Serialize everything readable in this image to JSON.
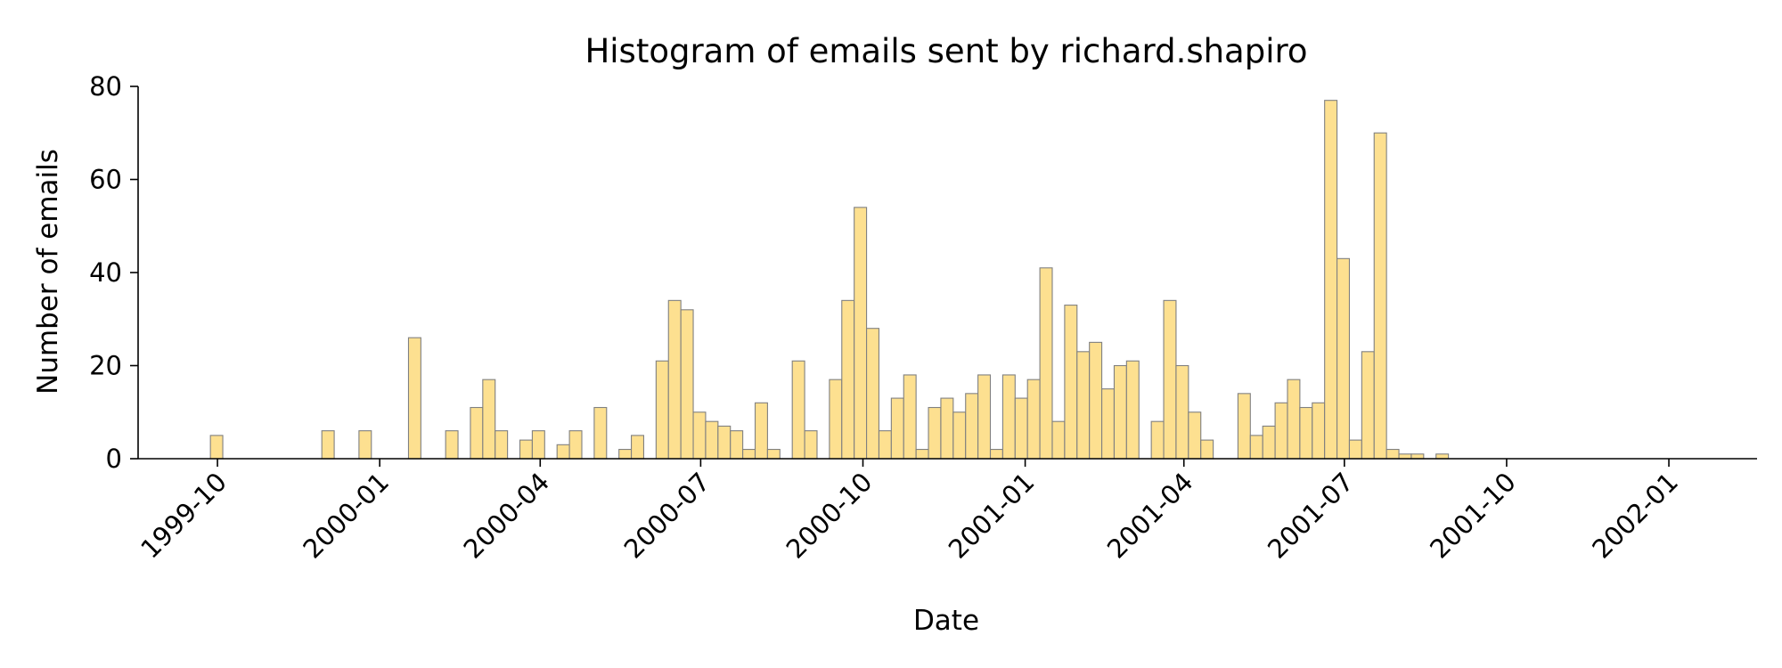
{
  "chart_data": {
    "type": "bar",
    "title": "Histogram of emails sent by richard.shapiro",
    "xlabel": "Date",
    "ylabel": "Number of emails",
    "bar_color": "#fde090",
    "edge_color": "#808080",
    "ylim": [
      0,
      80
    ],
    "yticks": [
      0,
      20,
      40,
      60,
      80
    ],
    "xlim": [
      "1999-08-17",
      "2002-02-20"
    ],
    "xticks": [
      "1999-10",
      "2000-01",
      "2000-04",
      "2000-07",
      "2000-10",
      "2001-01",
      "2001-04",
      "2001-07",
      "2001-10",
      "2002-01"
    ],
    "bin_start": "1999-09-27",
    "bin_width_days": 7.02,
    "values": [
      5,
      0,
      0,
      0,
      0,
      0,
      0,
      0,
      0,
      6,
      0,
      0,
      6,
      0,
      0,
      0,
      26,
      0,
      0,
      6,
      0,
      11,
      17,
      6,
      0,
      4,
      6,
      0,
      3,
      6,
      0,
      11,
      0,
      2,
      5,
      0,
      21,
      34,
      32,
      10,
      8,
      7,
      6,
      2,
      12,
      2,
      0,
      21,
      6,
      0,
      17,
      34,
      54,
      28,
      6,
      13,
      18,
      2,
      11,
      13,
      10,
      14,
      18,
      2,
      18,
      13,
      17,
      41,
      8,
      33,
      23,
      25,
      15,
      20,
      21,
      0,
      8,
      34,
      20,
      10,
      4,
      0,
      0,
      14,
      5,
      7,
      12,
      17,
      11,
      12,
      77,
      43,
      4,
      23,
      70,
      2,
      1,
      1,
      0,
      1
    ],
    "grid": false,
    "spines": [
      "left",
      "bottom"
    ]
  }
}
